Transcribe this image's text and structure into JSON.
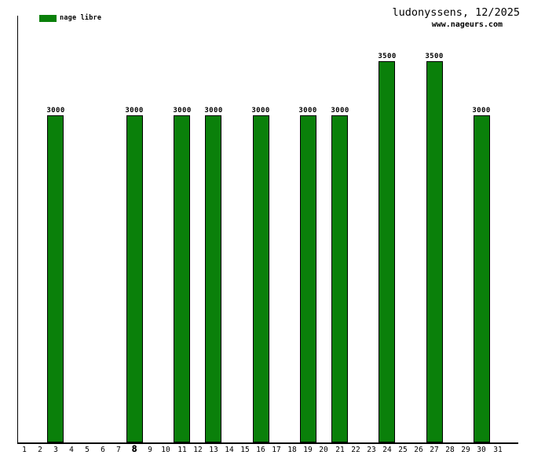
{
  "header": {
    "title": "ludonyssens, 12/2025",
    "website": "www.nageurs.com"
  },
  "legend": {
    "label": "nage libre",
    "swatch_color": "#0a800a"
  },
  "chart_data": {
    "type": "bar",
    "title": "ludonyssens, 12/2025",
    "subtitle": "www.nageurs.com",
    "xlabel": "",
    "ylabel": "",
    "legend_entries": [
      "nage libre"
    ],
    "legend_position": "top-left",
    "grid": false,
    "bar_color": "#0a800a",
    "bar_border_color": "#000000",
    "x_ticks": [
      "1",
      "2",
      "3",
      "4",
      "5",
      "6",
      "7",
      "8",
      "9",
      "10",
      "11",
      "12",
      "13",
      "14",
      "15",
      "16",
      "17",
      "18",
      "19",
      "20",
      "21",
      "22",
      "23",
      "24",
      "25",
      "26",
      "27",
      "28",
      "29",
      "30",
      "31"
    ],
    "highlighted_tick": "8",
    "ylim": [
      0,
      3600
    ],
    "bars": [
      {
        "day": 3,
        "value": 3000,
        "label": "3000"
      },
      {
        "day": 8,
        "value": 3000,
        "label": "3000"
      },
      {
        "day": 11,
        "value": 3000,
        "label": "3000"
      },
      {
        "day": 13,
        "value": 3000,
        "label": "3000"
      },
      {
        "day": 16,
        "value": 3000,
        "label": "3000"
      },
      {
        "day": 19,
        "value": 3000,
        "label": "3000"
      },
      {
        "day": 21,
        "value": 3000,
        "label": "3000"
      },
      {
        "day": 24,
        "value": 3500,
        "label": "3500"
      },
      {
        "day": 27,
        "value": 3500,
        "label": "3500"
      },
      {
        "day": 30,
        "value": 3000,
        "label": "3000"
      }
    ]
  }
}
